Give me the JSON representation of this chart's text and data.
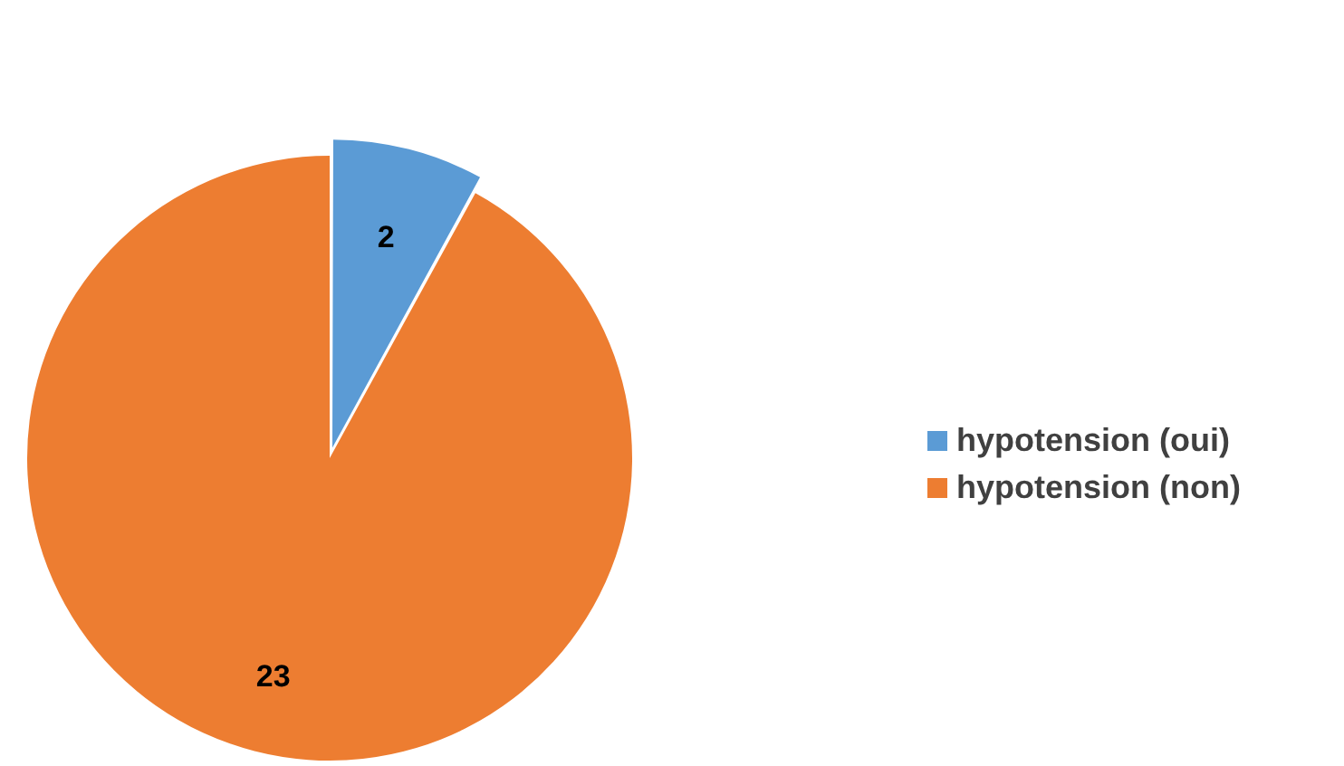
{
  "chart_data": {
    "type": "pie",
    "categories": [
      "hypotension (oui)",
      "hypotension (non)"
    ],
    "values": [
      2,
      23
    ],
    "colors": [
      "#5b9bd5",
      "#ed7d31"
    ],
    "data_labels": true,
    "legend": "right"
  }
}
